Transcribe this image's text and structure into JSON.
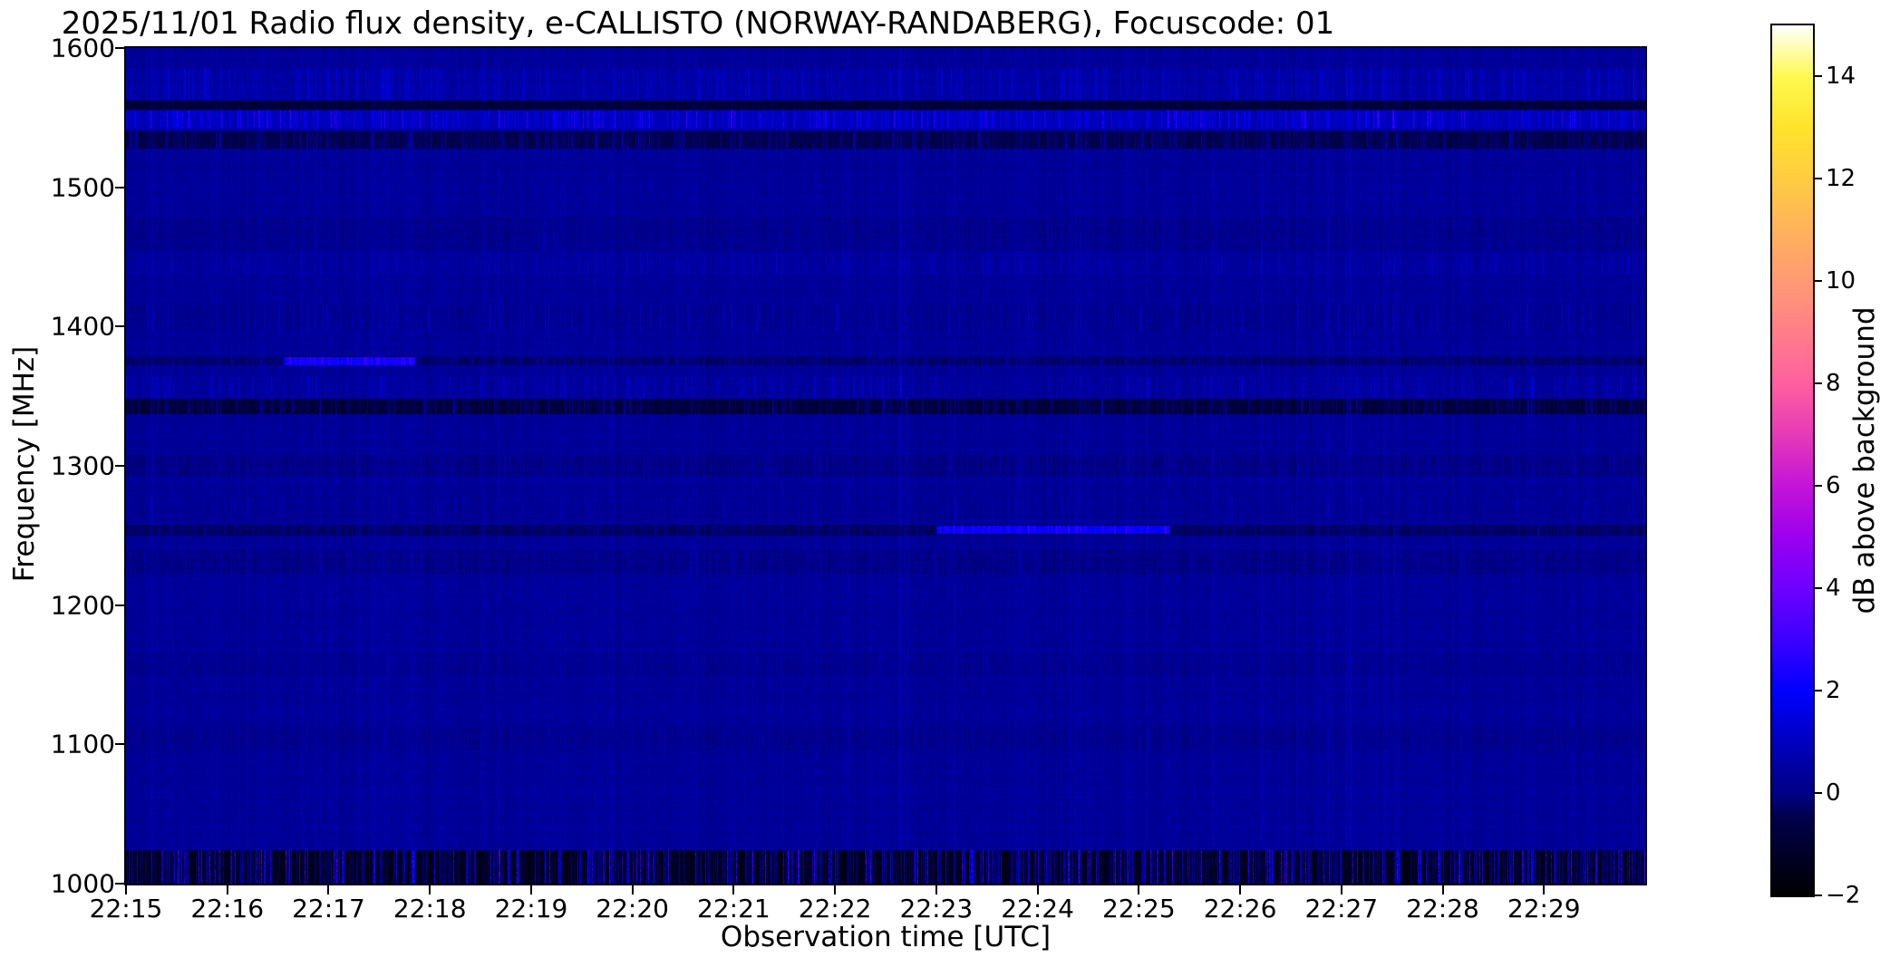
{
  "chart_data": {
    "type": "heatmap",
    "subtype": "radio-spectrogram",
    "title": "2025/11/01  Radio flux density, e-CALLISTO (NORWAY-RANDABERG), Focuscode: 01",
    "xlabel": "Observation time [UTC]",
    "ylabel": "Frequency [MHz]",
    "x_ticks": [
      "22:15",
      "22:16",
      "22:17",
      "22:18",
      "22:19",
      "22:20",
      "22:21",
      "22:22",
      "22:23",
      "22:24",
      "22:25",
      "22:26",
      "22:27",
      "22:28",
      "22:29"
    ],
    "x_tick_minutes": [
      0,
      1,
      2,
      3,
      4,
      5,
      6,
      7,
      8,
      9,
      10,
      11,
      12,
      13,
      14
    ],
    "x_range_minutes": [
      0,
      15
    ],
    "y_ticks": [
      1600,
      1500,
      1400,
      1300,
      1200,
      1100,
      1000
    ],
    "ylim": [
      1000,
      1600
    ],
    "grid": false,
    "colorbar": {
      "label": "dB above background",
      "range": [
        -2,
        15
      ],
      "ticks": [
        14,
        12,
        10,
        8,
        6,
        4,
        2,
        0,
        -2
      ],
      "tick_labels": [
        "14",
        "12",
        "10",
        "8",
        "6",
        "4",
        "2",
        "0",
        "−2"
      ],
      "colormap_stops": [
        [
          -2,
          "#000000"
        ],
        [
          -0.5,
          "#00004a"
        ],
        [
          0,
          "#000085"
        ],
        [
          0.5,
          "#0000a0"
        ],
        [
          1,
          "#0000c0"
        ],
        [
          2,
          "#0000ff"
        ],
        [
          3,
          "#3c00ff"
        ],
        [
          4,
          "#6e00ff"
        ],
        [
          5,
          "#9b00f0"
        ],
        [
          6,
          "#c414d8"
        ],
        [
          7,
          "#e63ab8"
        ],
        [
          8,
          "#ff5fa0"
        ],
        [
          9,
          "#ff7e8a"
        ],
        [
          10,
          "#ff9a74"
        ],
        [
          11,
          "#ffb25c"
        ],
        [
          12,
          "#ffcc42"
        ],
        [
          13,
          "#ffe32b"
        ],
        [
          14,
          "#fff950"
        ],
        [
          15,
          "#ffffff"
        ]
      ]
    },
    "background_level_db": 0.35,
    "noise": {
      "seed": 42,
      "column_amp": 0.45,
      "row_amp": 0.22,
      "pixel_amp": 0.5
    },
    "rfi_bands": [
      {
        "freq_mhz": [
          1563,
          1586
        ],
        "offset_db": 0.15,
        "streak_density": 0.3,
        "streak_amp_db": 1.6,
        "note": "faint dashed RFI band"
      },
      {
        "freq_mhz": [
          1556,
          1562
        ],
        "offset_db": -1.1,
        "streak_density": 0.25,
        "streak_amp_db": -0.6,
        "note": "dark absorption line"
      },
      {
        "freq_mhz": [
          1542,
          1555
        ],
        "offset_db": 0.5,
        "streak_density": 0.42,
        "streak_amp_db": 2.6,
        "note": "bright streaked RFI band"
      },
      {
        "freq_mhz": [
          1528,
          1540
        ],
        "offset_db": -0.9,
        "streak_density": 0.35,
        "streak_amp_db": 2.0,
        "note": "dark band with bright ticks"
      },
      {
        "freq_mhz": [
          1455,
          1478
        ],
        "offset_db": -0.2,
        "streak_density": 0.2,
        "streak_amp_db": 0.6,
        "note": "faint dark rows"
      },
      {
        "freq_mhz": [
          1438,
          1452
        ],
        "offset_db": 0.05,
        "streak_density": 0.25,
        "streak_amp_db": 1.1,
        "note": "faint speckle band"
      },
      {
        "freq_mhz": [
          1396,
          1416
        ],
        "offset_db": -0.15,
        "streak_density": 0.3,
        "streak_amp_db": 1.2,
        "note": "speckle band near 1400 MHz"
      },
      {
        "freq_mhz": [
          1372,
          1379
        ],
        "offset_db": -0.6,
        "streak_density": 0.25,
        "streak_amp_db": 1.2,
        "note": "narrow mixed line at 1375 MHz"
      },
      {
        "freq_mhz": [
          1372,
          1378
        ],
        "offset_db": 2.3,
        "streak_density": 0.55,
        "streak_amp_db": 1.4,
        "time_min": [
          1.55,
          2.85
        ],
        "note": "bright segment ~22:16.5-22:18"
      },
      {
        "freq_mhz": [
          1349,
          1364
        ],
        "offset_db": 0.05,
        "streak_density": 0.3,
        "streak_amp_db": 1.5,
        "note": "speckle band"
      },
      {
        "freq_mhz": [
          1337,
          1348
        ],
        "offset_db": -1.2,
        "streak_density": 0.45,
        "streak_amp_db": 1.9,
        "note": "dark RFI line with speckle"
      },
      {
        "freq_mhz": [
          1293,
          1308
        ],
        "offset_db": -0.3,
        "streak_density": 0.25,
        "streak_amp_db": 0.9,
        "note": "faint band near 1300 MHz"
      },
      {
        "freq_mhz": [
          1262,
          1278
        ],
        "offset_db": -0.1,
        "streak_density": 0.2,
        "streak_amp_db": 0.8,
        "note": "faint speckle"
      },
      {
        "freq_mhz": [
          1250,
          1258
        ],
        "offset_db": -0.7,
        "streak_density": 0.3,
        "streak_amp_db": 1.1,
        "note": "dark line at 1254 MHz"
      },
      {
        "freq_mhz": [
          1251,
          1257
        ],
        "offset_db": 2.2,
        "streak_density": 0.55,
        "streak_amp_db": 1.2,
        "time_min": [
          8.0,
          10.3
        ],
        "note": "bright segment 22:23-22:25"
      },
      {
        "freq_mhz": [
          1222,
          1240
        ],
        "offset_db": -0.25,
        "streak_density": 0.25,
        "streak_amp_db": 0.8,
        "note": "faint band"
      },
      {
        "freq_mhz": [
          1150,
          1165
        ],
        "offset_db": -0.15,
        "streak_density": 0.2,
        "streak_amp_db": 0.7,
        "note": "very faint band"
      },
      {
        "freq_mhz": [
          1096,
          1112
        ],
        "offset_db": -0.2,
        "streak_density": 0.2,
        "streak_amp_db": 0.7,
        "note": "very faint band"
      },
      {
        "freq_mhz": [
          1000,
          1024
        ],
        "offset_db": -1.9,
        "streak_density": 0.6,
        "streak_amp_db": 6.0,
        "note": "strong broadband RFI at lower edge"
      }
    ]
  }
}
